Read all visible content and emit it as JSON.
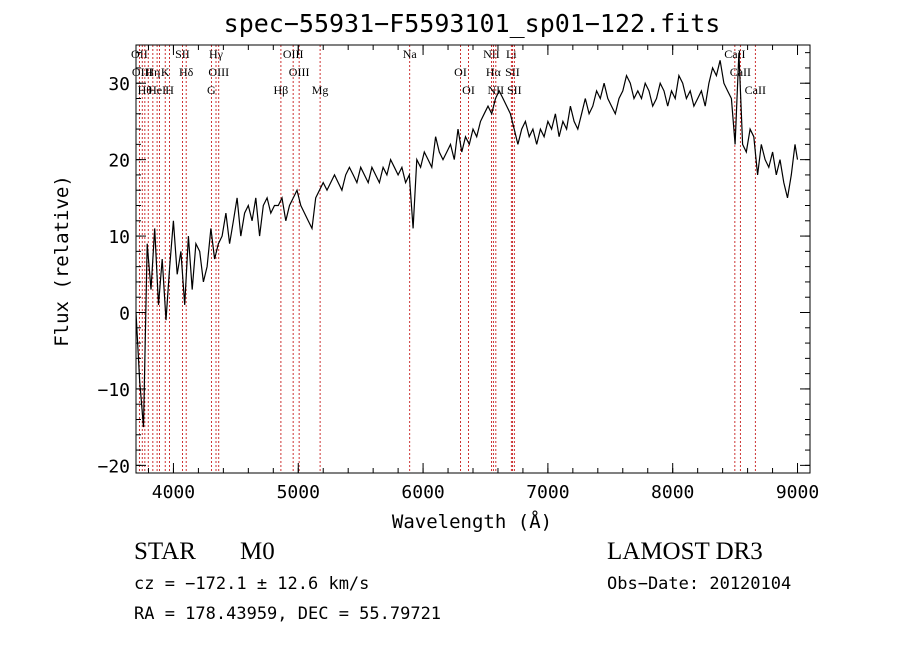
{
  "chart_data": {
    "type": "line",
    "title": "spec−55931−F5593101_sp01−122.fits",
    "xlabel": "Wavelength (Å)",
    "ylabel": "Flux (relative)",
    "xlim": [
      3700,
      9100
    ],
    "ylim": [
      -21,
      35
    ],
    "x_ticks": [
      4000,
      5000,
      6000,
      7000,
      8000,
      9000
    ],
    "y_ticks": [
      -20,
      -10,
      0,
      10,
      20,
      30
    ],
    "grid": false,
    "series": [
      {
        "x": [
          3700,
          3730,
          3760,
          3790,
          3820,
          3850,
          3880,
          3910,
          3940,
          3970,
          4000,
          4030,
          4060,
          4090,
          4120,
          4150,
          4180,
          4210,
          4240,
          4270,
          4300,
          4330,
          4360,
          4390,
          4420,
          4450,
          4480,
          4510,
          4540,
          4570,
          4600,
          4630,
          4660,
          4690,
          4720,
          4750,
          4780,
          4810,
          4840,
          4870,
          4900,
          4930,
          4960,
          4990,
          5020,
          5050,
          5080,
          5110,
          5140,
          5170,
          5200,
          5230,
          5260,
          5290,
          5320,
          5350,
          5380,
          5410,
          5440,
          5470,
          5500,
          5530,
          5560,
          5590,
          5620,
          5650,
          5680,
          5710,
          5740,
          5770,
          5800,
          5830,
          5860,
          5890,
          5920,
          5950,
          5980,
          6010,
          6040,
          6070,
          6100,
          6130,
          6160,
          6190,
          6220,
          6250,
          6280,
          6310,
          6340,
          6370,
          6400,
          6430,
          6460,
          6490,
          6520,
          6550,
          6580,
          6610,
          6640,
          6670,
          6700,
          6730,
          6760,
          6790,
          6820,
          6850,
          6880,
          6910,
          6940,
          6970,
          7000,
          7030,
          7060,
          7090,
          7120,
          7150,
          7180,
          7210,
          7240,
          7270,
          7300,
          7330,
          7360,
          7390,
          7420,
          7450,
          7480,
          7510,
          7540,
          7570,
          7600,
          7630,
          7660,
          7690,
          7720,
          7750,
          7780,
          7810,
          7840,
          7870,
          7900,
          7930,
          7960,
          7990,
          8020,
          8050,
          8080,
          8110,
          8140,
          8170,
          8200,
          8230,
          8260,
          8290,
          8320,
          8350,
          8380,
          8410,
          8440,
          8470,
          8500,
          8530,
          8560,
          8590,
          8620,
          8650,
          8680,
          8710,
          8740,
          8770,
          8800,
          8830,
          8860,
          8890,
          8920,
          8950,
          8980,
          9000
        ],
        "values": [
          0,
          -9,
          -15,
          9,
          3,
          11,
          1,
          7,
          -1,
          6,
          12,
          5,
          8,
          1,
          10,
          3,
          9,
          8,
          4,
          6,
          11,
          7,
          9,
          10,
          13,
          9,
          12,
          15,
          10,
          13,
          14,
          12,
          15,
          10,
          14,
          15,
          13,
          14,
          14,
          15,
          12,
          14,
          15,
          16,
          14,
          13,
          12,
          11,
          15,
          16,
          17,
          16,
          17,
          18,
          17,
          16,
          18,
          19,
          18,
          17,
          19,
          18,
          17,
          19,
          18,
          17,
          19,
          18,
          20,
          19,
          18,
          19,
          17,
          18,
          11,
          20,
          19,
          21,
          20,
          19,
          23,
          21,
          20,
          21,
          22,
          20,
          24,
          21,
          23,
          22,
          24,
          23,
          25,
          26,
          27,
          26,
          28,
          29,
          28,
          27,
          26,
          24,
          22,
          24,
          25,
          23,
          24,
          22,
          24,
          23,
          25,
          24,
          26,
          23,
          25,
          24,
          27,
          25,
          24,
          26,
          28,
          26,
          27,
          29,
          28,
          30,
          28,
          27,
          26,
          28,
          29,
          31,
          30,
          28,
          29,
          28,
          30,
          29,
          27,
          28,
          30,
          29,
          27,
          29,
          28,
          31,
          30,
          28,
          29,
          27,
          28,
          29,
          27,
          30,
          32,
          31,
          33,
          30,
          29,
          28,
          22,
          34,
          22,
          21,
          24,
          23,
          18,
          22,
          20,
          19,
          21,
          18,
          20,
          17,
          15,
          18,
          22,
          20
        ]
      }
    ],
    "lines": [
      {
        "w": 3727,
        "labels": [
          "OII"
        ]
      },
      {
        "w": 3750,
        "labels": [
          "OIII"
        ]
      },
      {
        "w": 3771,
        "labels": [
          "Hθ"
        ]
      },
      {
        "w": 3798,
        "labels": [
          ""
        ]
      },
      {
        "w": 3835,
        "labels": [
          "Hη"
        ]
      },
      {
        "w": 3869,
        "labels": [
          "HeI"
        ]
      },
      {
        "w": 3889,
        "labels": [
          ""
        ]
      },
      {
        "w": 3934,
        "labels": [
          "K"
        ]
      },
      {
        "w": 3969,
        "labels": [
          "H"
        ]
      },
      {
        "w": 4072,
        "labels": [
          "SII"
        ]
      },
      {
        "w": 4102,
        "labels": [
          "Hδ"
        ]
      },
      {
        "w": 4304,
        "labels": [
          "G"
        ]
      },
      {
        "w": 4341,
        "labels": [
          "Hγ"
        ]
      },
      {
        "w": 4363,
        "labels": [
          "OIII"
        ]
      },
      {
        "w": 4861,
        "labels": [
          "Hβ"
        ]
      },
      {
        "w": 4959,
        "labels": [
          "OIII"
        ]
      },
      {
        "w": 5007,
        "labels": [
          "OIII"
        ]
      },
      {
        "w": 5175,
        "labels": [
          "Mg"
        ]
      },
      {
        "w": 5893,
        "labels": [
          "Na"
        ]
      },
      {
        "w": 6300,
        "labels": [
          "OI"
        ]
      },
      {
        "w": 6364,
        "labels": [
          "OI"
        ]
      },
      {
        "w": 6548,
        "labels": [
          "NII"
        ]
      },
      {
        "w": 6563,
        "labels": [
          "Hα"
        ]
      },
      {
        "w": 6583,
        "labels": [
          "NII"
        ]
      },
      {
        "w": 6707,
        "labels": [
          "Li"
        ]
      },
      {
        "w": 6716,
        "labels": [
          "SII"
        ]
      },
      {
        "w": 6731,
        "labels": [
          "SII"
        ]
      },
      {
        "w": 8498,
        "labels": [
          "CaII"
        ]
      },
      {
        "w": 8542,
        "labels": [
          "CaII"
        ]
      },
      {
        "w": 8662,
        "labels": [
          "CaII"
        ]
      }
    ]
  },
  "info": {
    "object_class": "STAR",
    "subclass": "M0",
    "survey": "LAMOST DR3",
    "cz": "cz = −172.1 ± 12.6 km/s",
    "obs_date": "Obs−Date: 20120104",
    "coords": "RA = 178.43959, DEC =  55.79721"
  }
}
